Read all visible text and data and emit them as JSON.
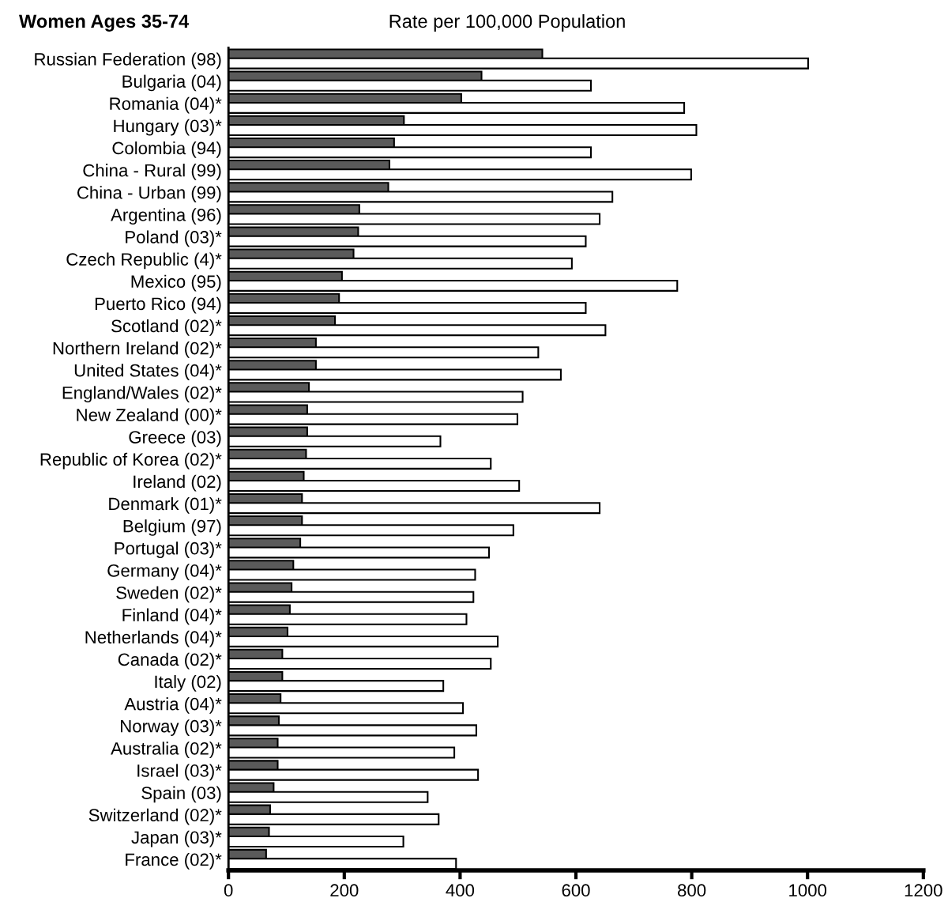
{
  "chart_data": {
    "type": "bar",
    "orientation": "horizontal",
    "title": "Women Ages 35-74",
    "subtitle": "Rate per 100,000 Population",
    "categories": [
      "Russian Federation (98)",
      "Bulgaria (04)",
      "Romania (04)*",
      "Hungary (03)*",
      "Colombia (94)",
      "China - Rural (99)",
      "China - Urban (99)",
      "Argentina (96)",
      "Poland (03)*",
      "Czech Republic (4)*",
      "Mexico (95)",
      "Puerto Rico (94)",
      "Scotland (02)*",
      "Northern Ireland (02)*",
      "United States (04)*",
      "England/Wales (02)*",
      "New Zealand (00)*",
      "Greece (03)",
      "Republic of Korea (02)*",
      "Ireland (02)",
      "Denmark (01)*",
      "Belgium (97)",
      "Portugal (03)*",
      "Germany (04)*",
      "Sweden (02)*",
      "Finland (04)*",
      "Netherlands (04)*",
      "Canada (02)*",
      "Italy (02)",
      "Austria (04)*",
      "Norway (03)*",
      "Australia (02)*",
      "Israel (03)*",
      "Spain (03)",
      "Switzerland (02)*",
      "Japan (03)*",
      "France (02)*"
    ],
    "series": [
      {
        "color": "#5a5a5a",
        "values": [
          542,
          437,
          402,
          303,
          286,
          278,
          276,
          226,
          224,
          216,
          196,
          191,
          184,
          151,
          151,
          139,
          136,
          136,
          134,
          130,
          127,
          127,
          124,
          112,
          109,
          106,
          102,
          93,
          93,
          90,
          87,
          85,
          85,
          78,
          72,
          70,
          65
        ]
      },
      {
        "color": "#ffffff",
        "values": [
          1001,
          626,
          787,
          808,
          626,
          799,
          663,
          641,
          617,
          593,
          775,
          617,
          651,
          535,
          574,
          508,
          499,
          366,
          453,
          502,
          641,
          492,
          450,
          426,
          423,
          411,
          465,
          453,
          371,
          405,
          428,
          390,
          431,
          344,
          363,
          302,
          393
        ]
      }
    ],
    "xlim": [
      0,
      1200
    ],
    "xticks": [
      0,
      200,
      400,
      600,
      800,
      1000,
      1200
    ],
    "grid": false,
    "legend": false
  }
}
